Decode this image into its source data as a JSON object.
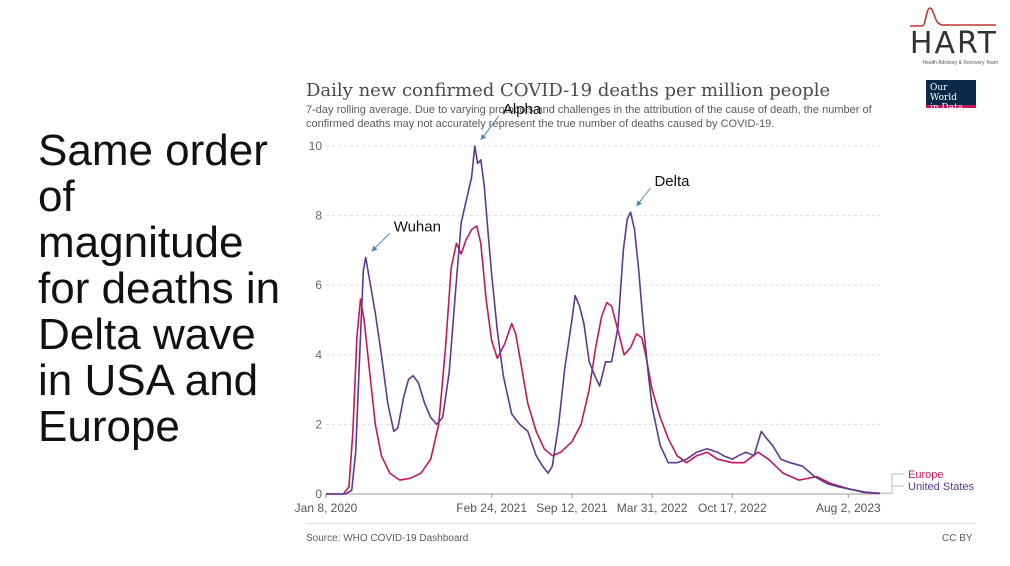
{
  "slide": {
    "headline": "Same order of magnitude for deaths in Delta wave in USA and Europe"
  },
  "logo": {
    "name": "HART",
    "tagline": "Health Advisory & Recovery Team"
  },
  "badge": {
    "line1": "Our World",
    "line2": "in Data"
  },
  "footer": {
    "source": "Source: WHO COVID-19 Dashboard",
    "license": "CC BY"
  },
  "colors": {
    "europe": "#c2185b",
    "us": "#5e3a8c",
    "annotation_arrow": "#4f86b0",
    "grid": "#dddddd"
  },
  "chart_data": {
    "type": "line",
    "title": "Daily new confirmed COVID-19 deaths per million people",
    "subtitle": "7-day rolling average. Due to varying protocols and challenges in the attribution of the cause of death, the number of confirmed deaths may not accurately represent the true number of deaths caused by COVID-19.",
    "xlabel": "",
    "ylabel": "",
    "ylim": [
      0,
      10
    ],
    "yticks": [
      0,
      2,
      4,
      6,
      8,
      10
    ],
    "xlim": [
      "2020-01-08",
      "2023-10-20"
    ],
    "xticks": [
      {
        "date": "2020-01-08",
        "label": "Jan 8, 2020"
      },
      {
        "date": "2021-02-24",
        "label": "Feb 24, 2021"
      },
      {
        "date": "2021-09-12",
        "label": "Sep 12, 2021"
      },
      {
        "date": "2022-03-31",
        "label": "Mar 31, 2022"
      },
      {
        "date": "2022-10-17",
        "label": "Oct 17, 2022"
      },
      {
        "date": "2023-08-02",
        "label": "Aug 2, 2023"
      }
    ],
    "grid": "horizontal dashed",
    "legend": "right, at line ends",
    "series": [
      {
        "name": "Europe",
        "color": "#c2185b",
        "points": [
          [
            "2020-01-08",
            0
          ],
          [
            "2020-02-20",
            0
          ],
          [
            "2020-03-05",
            0.2
          ],
          [
            "2020-03-15",
            1.8
          ],
          [
            "2020-03-25",
            4.5
          ],
          [
            "2020-04-03",
            5.6
          ],
          [
            "2020-04-12",
            5.0
          ],
          [
            "2020-04-25",
            3.6
          ],
          [
            "2020-05-10",
            2.0
          ],
          [
            "2020-05-25",
            1.1
          ],
          [
            "2020-06-15",
            0.6
          ],
          [
            "2020-07-10",
            0.4
          ],
          [
            "2020-08-05",
            0.45
          ],
          [
            "2020-09-01",
            0.6
          ],
          [
            "2020-09-25",
            1.0
          ],
          [
            "2020-10-15",
            2.0
          ],
          [
            "2020-11-01",
            4.2
          ],
          [
            "2020-11-15",
            6.5
          ],
          [
            "2020-11-28",
            7.2
          ],
          [
            "2020-12-10",
            6.9
          ],
          [
            "2020-12-22",
            7.3
          ],
          [
            "2021-01-05",
            7.6
          ],
          [
            "2021-01-18",
            7.7
          ],
          [
            "2021-01-28",
            7.2
          ],
          [
            "2021-02-10",
            5.6
          ],
          [
            "2021-02-24",
            4.4
          ],
          [
            "2021-03-10",
            3.9
          ],
          [
            "2021-03-28",
            4.3
          ],
          [
            "2021-04-15",
            4.9
          ],
          [
            "2021-04-25",
            4.6
          ],
          [
            "2021-05-10",
            3.6
          ],
          [
            "2021-05-25",
            2.6
          ],
          [
            "2021-06-15",
            1.8
          ],
          [
            "2021-07-05",
            1.3
          ],
          [
            "2021-07-25",
            1.1
          ],
          [
            "2021-08-15",
            1.2
          ],
          [
            "2021-09-12",
            1.5
          ],
          [
            "2021-10-05",
            2.0
          ],
          [
            "2021-10-25",
            3.0
          ],
          [
            "2021-11-10",
            4.2
          ],
          [
            "2021-11-25",
            5.1
          ],
          [
            "2021-12-08",
            5.5
          ],
          [
            "2021-12-20",
            5.4
          ],
          [
            "2022-01-05",
            4.7
          ],
          [
            "2022-01-20",
            4.0
          ],
          [
            "2022-02-05",
            4.2
          ],
          [
            "2022-02-20",
            4.6
          ],
          [
            "2022-03-05",
            4.5
          ],
          [
            "2022-03-15",
            4.0
          ],
          [
            "2022-03-31",
            3.0
          ],
          [
            "2022-04-20",
            2.2
          ],
          [
            "2022-05-10",
            1.6
          ],
          [
            "2022-06-01",
            1.1
          ],
          [
            "2022-06-25",
            0.9
          ],
          [
            "2022-07-20",
            1.1
          ],
          [
            "2022-08-15",
            1.2
          ],
          [
            "2022-09-10",
            1.0
          ],
          [
            "2022-10-17",
            0.9
          ],
          [
            "2022-11-15",
            0.9
          ],
          [
            "2022-12-20",
            1.2
          ],
          [
            "2023-01-15",
            1.0
          ],
          [
            "2023-02-20",
            0.6
          ],
          [
            "2023-04-01",
            0.4
          ],
          [
            "2023-05-15",
            0.5
          ],
          [
            "2023-06-20",
            0.3
          ],
          [
            "2023-08-02",
            0.15
          ],
          [
            "2023-09-15",
            0.05
          ],
          [
            "2023-10-20",
            0.02
          ]
        ]
      },
      {
        "name": "United States",
        "color": "#5e3a8c",
        "points": [
          [
            "2020-01-08",
            0
          ],
          [
            "2020-02-25",
            0
          ],
          [
            "2020-03-12",
            0.1
          ],
          [
            "2020-03-22",
            1.2
          ],
          [
            "2020-04-01",
            4.0
          ],
          [
            "2020-04-10",
            6.4
          ],
          [
            "2020-04-16",
            6.8
          ],
          [
            "2020-04-25",
            6.2
          ],
          [
            "2020-05-10",
            5.2
          ],
          [
            "2020-05-25",
            4.0
          ],
          [
            "2020-06-10",
            2.6
          ],
          [
            "2020-06-25",
            1.8
          ],
          [
            "2020-07-05",
            1.9
          ],
          [
            "2020-07-20",
            2.8
          ],
          [
            "2020-08-01",
            3.3
          ],
          [
            "2020-08-12",
            3.4
          ],
          [
            "2020-08-25",
            3.2
          ],
          [
            "2020-09-10",
            2.6
          ],
          [
            "2020-09-25",
            2.2
          ],
          [
            "2020-10-10",
            2.0
          ],
          [
            "2020-10-25",
            2.2
          ],
          [
            "2020-11-10",
            3.5
          ],
          [
            "2020-11-25",
            5.7
          ],
          [
            "2020-12-10",
            7.8
          ],
          [
            "2020-12-22",
            8.4
          ],
          [
            "2021-01-05",
            9.1
          ],
          [
            "2021-01-13",
            10.0
          ],
          [
            "2021-01-20",
            9.5
          ],
          [
            "2021-01-28",
            9.6
          ],
          [
            "2021-02-05",
            8.9
          ],
          [
            "2021-02-15",
            7.5
          ],
          [
            "2021-02-24",
            6.3
          ],
          [
            "2021-03-10",
            4.7
          ],
          [
            "2021-03-25",
            3.4
          ],
          [
            "2021-04-15",
            2.3
          ],
          [
            "2021-05-05",
            2.0
          ],
          [
            "2021-05-25",
            1.8
          ],
          [
            "2021-06-15",
            1.1
          ],
          [
            "2021-07-01",
            0.8
          ],
          [
            "2021-07-15",
            0.6
          ],
          [
            "2021-07-25",
            0.8
          ],
          [
            "2021-08-10",
            2.0
          ],
          [
            "2021-08-25",
            3.6
          ],
          [
            "2021-09-12",
            5.0
          ],
          [
            "2021-09-20",
            5.7
          ],
          [
            "2021-10-01",
            5.4
          ],
          [
            "2021-10-12",
            4.9
          ],
          [
            "2021-10-25",
            3.8
          ],
          [
            "2021-11-08",
            3.4
          ],
          [
            "2021-11-20",
            3.1
          ],
          [
            "2021-12-05",
            3.8
          ],
          [
            "2021-12-20",
            3.8
          ],
          [
            "2022-01-05",
            4.8
          ],
          [
            "2022-01-18",
            7.0
          ],
          [
            "2022-01-28",
            7.9
          ],
          [
            "2022-02-05",
            8.1
          ],
          [
            "2022-02-15",
            7.6
          ],
          [
            "2022-02-25",
            6.5
          ],
          [
            "2022-03-08",
            5.0
          ],
          [
            "2022-03-20",
            3.6
          ],
          [
            "2022-03-31",
            2.5
          ],
          [
            "2022-04-20",
            1.4
          ],
          [
            "2022-05-10",
            0.9
          ],
          [
            "2022-06-01",
            0.9
          ],
          [
            "2022-06-25",
            1.0
          ],
          [
            "2022-07-20",
            1.2
          ],
          [
            "2022-08-15",
            1.3
          ],
          [
            "2022-09-10",
            1.2
          ],
          [
            "2022-09-25",
            1.1
          ],
          [
            "2022-10-17",
            1.0
          ],
          [
            "2022-11-01",
            1.1
          ],
          [
            "2022-11-20",
            1.2
          ],
          [
            "2022-12-10",
            1.1
          ],
          [
            "2022-12-28",
            1.8
          ],
          [
            "2023-01-10",
            1.6
          ],
          [
            "2023-01-25",
            1.4
          ],
          [
            "2023-02-15",
            1.0
          ],
          [
            "2023-03-10",
            0.9
          ],
          [
            "2023-04-10",
            0.8
          ],
          [
            "2023-05-10",
            0.5
          ],
          [
            "2023-06-10",
            0.3
          ],
          [
            "2023-07-10",
            0.2
          ],
          [
            "2023-08-02",
            0.15
          ],
          [
            "2023-09-10",
            0.05
          ],
          [
            "2023-10-20",
            0.02
          ]
        ]
      }
    ],
    "annotations": [
      {
        "text": "Wuhan",
        "date": "2020-04-16",
        "value": 6.8
      },
      {
        "text": "Alpha",
        "date": "2021-01-13",
        "value": 10.0
      },
      {
        "text": "Delta",
        "date": "2022-02-05",
        "value": 8.1
      }
    ]
  }
}
